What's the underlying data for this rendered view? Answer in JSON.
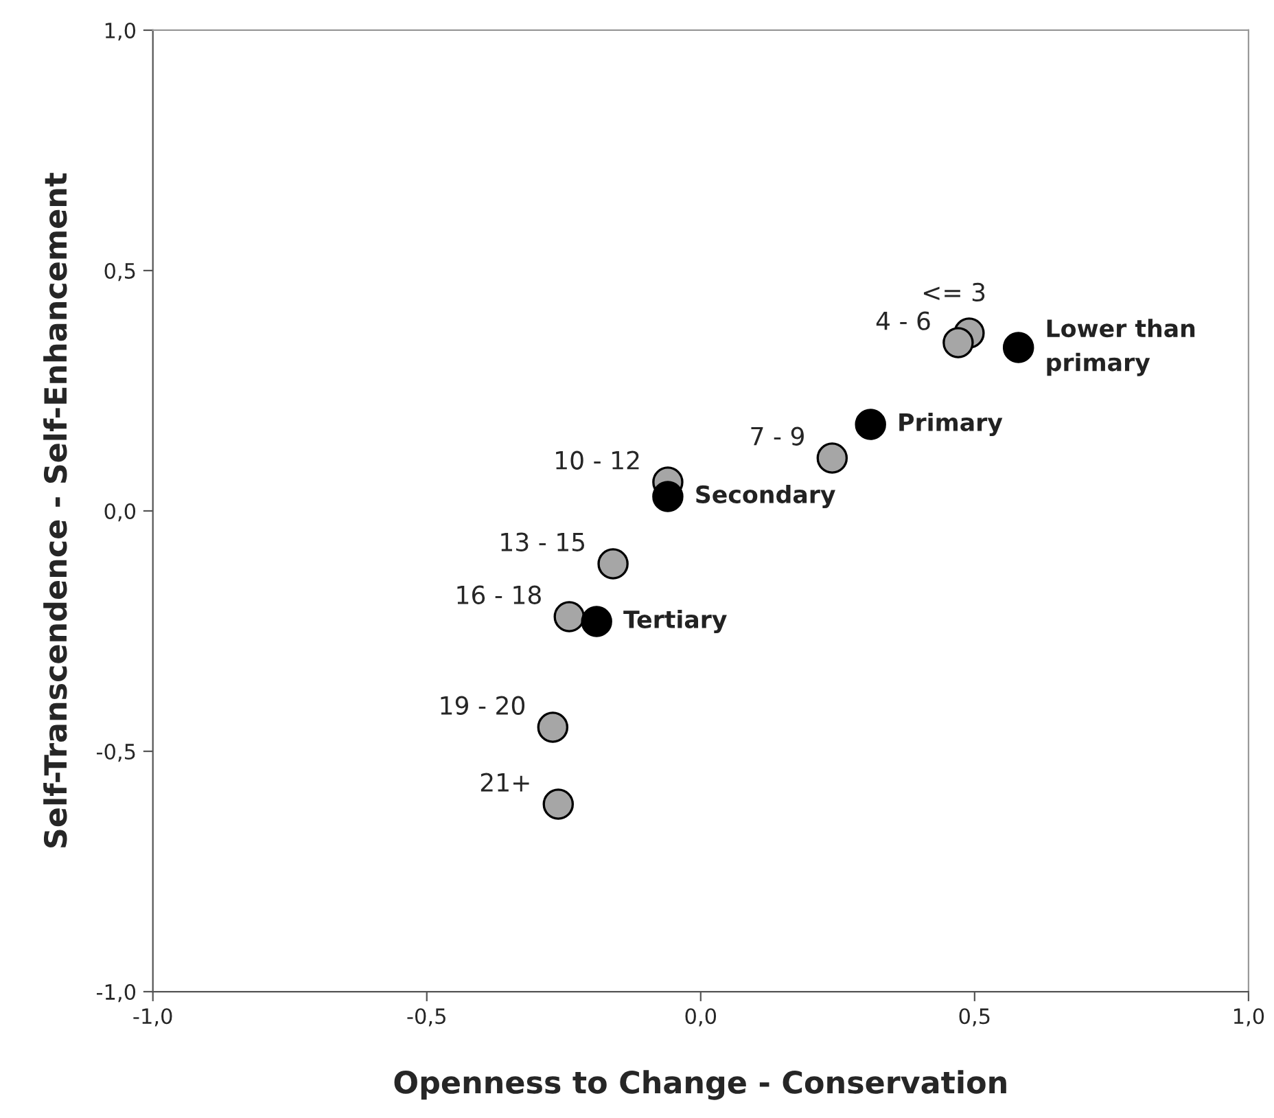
{
  "chart_data": {
    "type": "scatter",
    "xlabel": "Openness to Change - Conservation",
    "ylabel": "Self-Transcendence - Self-Enhancement",
    "xlim": [
      -1.0,
      1.0
    ],
    "ylim": [
      -1.0,
      1.0
    ],
    "xticks": [
      {
        "value": -1.0,
        "label": "-1,0"
      },
      {
        "value": -0.5,
        "label": "-0,5"
      },
      {
        "value": 0.0,
        "label": "0,0"
      },
      {
        "value": 0.5,
        "label": "0,5"
      },
      {
        "value": 1.0,
        "label": "1,0"
      }
    ],
    "yticks": [
      {
        "value": -1.0,
        "label": "-1,0"
      },
      {
        "value": -0.5,
        "label": "-0,5"
      },
      {
        "value": 0.0,
        "label": "0,0"
      },
      {
        "value": 0.5,
        "label": "0,5"
      },
      {
        "value": 1.0,
        "label": "1,0"
      }
    ],
    "grid": false,
    "legend": false,
    "marker": "circle",
    "series": [
      {
        "color": "#a6a6a6",
        "x": [
          0.49,
          0.47,
          0.24,
          -0.06,
          -0.16,
          -0.24,
          -0.27,
          -0.26
        ],
        "values": [
          0.37,
          0.35,
          0.11,
          0.06,
          -0.11,
          -0.22,
          -0.45,
          -0.61
        ]
      },
      {
        "color": "#000000",
        "x": [
          0.58,
          0.31,
          -0.06,
          -0.19
        ],
        "values": [
          0.34,
          0.18,
          0.03,
          -0.23
        ]
      }
    ],
    "annotations": [
      {
        "text": "<= 3",
        "x": 0.49,
        "y": 0.37
      },
      {
        "text": "4 - 6",
        "x": 0.47,
        "y": 0.35
      },
      {
        "text": "7 - 9",
        "x": 0.24,
        "y": 0.11
      },
      {
        "text": "10 - 12",
        "x": -0.06,
        "y": 0.06
      },
      {
        "text": "13 - 15",
        "x": -0.16,
        "y": -0.11
      },
      {
        "text": "16 - 18",
        "x": -0.24,
        "y": -0.22
      },
      {
        "text": "19 - 20",
        "x": -0.27,
        "y": -0.45
      },
      {
        "text": "21+",
        "x": -0.26,
        "y": -0.61
      },
      {
        "text": "Lower than\nprimary",
        "x": 0.58,
        "y": 0.34
      },
      {
        "text": "Primary",
        "x": 0.31,
        "y": 0.18
      },
      {
        "text": "Secondary",
        "x": -0.06,
        "y": 0.03
      },
      {
        "text": "Tertiary",
        "x": -0.19,
        "y": -0.23
      }
    ]
  }
}
